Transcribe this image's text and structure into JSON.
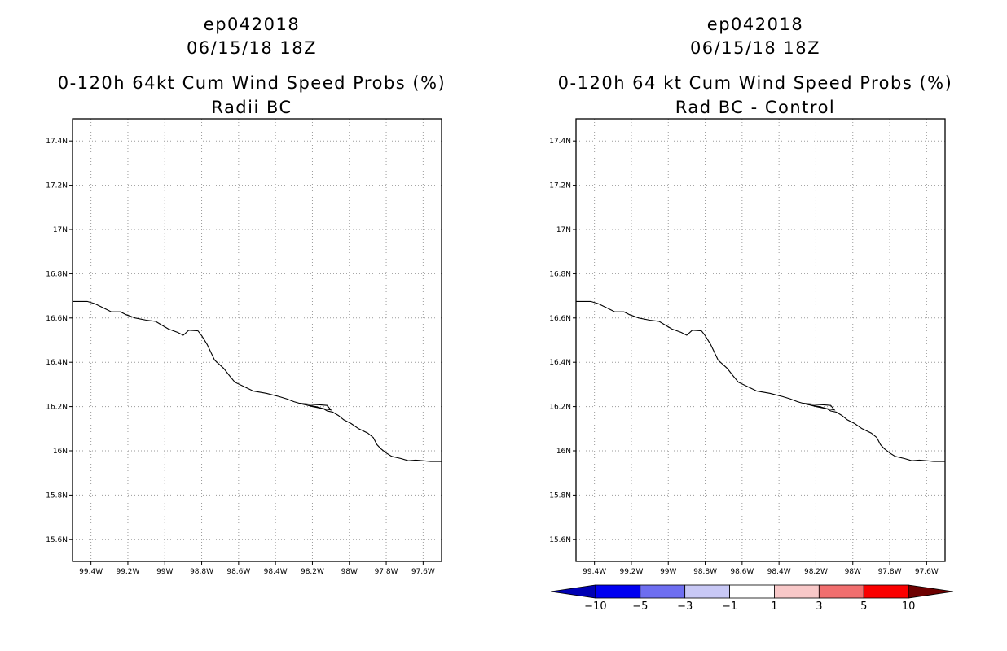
{
  "panels": [
    {
      "storm_id": "ep042018",
      "datetime": "06/15/18 18Z",
      "product": "0-120h 64kt Cum Wind Speed Probs (%)",
      "subtitle": "Radii BC"
    },
    {
      "storm_id": "ep042018",
      "datetime": "06/15/18 18Z",
      "product": "0-120h 64 kt Cum Wind Speed Probs (%)",
      "subtitle": "Rad BC - Control"
    }
  ],
  "map": {
    "lon_range": [
      -99.5,
      -97.5
    ],
    "lat_range": [
      15.5,
      17.5
    ],
    "lon_ticks": [
      {
        "value": -99.4,
        "label": "99.4W"
      },
      {
        "value": -99.2,
        "label": "99.2W"
      },
      {
        "value": -99.0,
        "label": "99W"
      },
      {
        "value": -98.8,
        "label": "98.8W"
      },
      {
        "value": -98.6,
        "label": "98.6W"
      },
      {
        "value": -98.4,
        "label": "98.4W"
      },
      {
        "value": -98.2,
        "label": "98.2W"
      },
      {
        "value": -98.0,
        "label": "98W"
      },
      {
        "value": -97.8,
        "label": "97.8W"
      },
      {
        "value": -97.6,
        "label": "97.6W"
      }
    ],
    "lat_ticks": [
      {
        "value": 15.6,
        "label": "15.6N"
      },
      {
        "value": 15.8,
        "label": "15.8N"
      },
      {
        "value": 16.0,
        "label": "16N"
      },
      {
        "value": 16.2,
        "label": "16.2N"
      },
      {
        "value": 16.4,
        "label": "16.4N"
      },
      {
        "value": 16.6,
        "label": "16.6N"
      },
      {
        "value": 16.8,
        "label": "16.8N"
      },
      {
        "value": 17.0,
        "label": "17N"
      },
      {
        "value": 17.2,
        "label": "17.2N"
      },
      {
        "value": 17.4,
        "label": "17.4N"
      }
    ],
    "coastline": [
      [
        -99.5,
        16.675
      ],
      [
        -99.42,
        16.675
      ],
      [
        -99.38,
        16.665
      ],
      [
        -99.33,
        16.645
      ],
      [
        -99.29,
        16.628
      ],
      [
        -99.24,
        16.628
      ],
      [
        -99.21,
        16.615
      ],
      [
        -99.16,
        16.6
      ],
      [
        -99.1,
        16.59
      ],
      [
        -99.05,
        16.585
      ],
      [
        -99.02,
        16.57
      ],
      [
        -98.98,
        16.55
      ],
      [
        -98.93,
        16.535
      ],
      [
        -98.9,
        16.522
      ],
      [
        -98.87,
        16.545
      ],
      [
        -98.82,
        16.542
      ],
      [
        -98.8,
        16.52
      ],
      [
        -98.77,
        16.48
      ],
      [
        -98.73,
        16.41
      ],
      [
        -98.68,
        16.372
      ],
      [
        -98.65,
        16.34
      ],
      [
        -98.62,
        16.31
      ],
      [
        -98.57,
        16.29
      ],
      [
        -98.52,
        16.27
      ],
      [
        -98.45,
        16.26
      ],
      [
        -98.38,
        16.245
      ],
      [
        -98.34,
        16.235
      ],
      [
        -98.3,
        16.222
      ],
      [
        -98.25,
        16.21
      ],
      [
        -98.18,
        16.2
      ],
      [
        -98.14,
        16.19
      ],
      [
        -98.12,
        16.18
      ],
      [
        -98.09,
        16.175
      ],
      [
        -98.06,
        16.16
      ],
      [
        -98.03,
        16.14
      ],
      [
        -97.99,
        16.123
      ],
      [
        -97.95,
        16.1
      ],
      [
        -97.9,
        16.08
      ],
      [
        -97.87,
        16.06
      ],
      [
        -97.85,
        16.028
      ],
      [
        -97.83,
        16.01
      ],
      [
        -97.8,
        15.99
      ],
      [
        -97.77,
        15.975
      ],
      [
        -97.72,
        15.965
      ],
      [
        -97.68,
        15.955
      ],
      [
        -97.64,
        15.958
      ],
      [
        -97.6,
        15.955
      ],
      [
        -97.56,
        15.952
      ],
      [
        -97.5,
        15.952
      ]
    ],
    "island": [
      [
        -98.27,
        16.215
      ],
      [
        -98.2,
        16.21
      ],
      [
        -98.16,
        16.208
      ],
      [
        -98.12,
        16.205
      ],
      [
        -98.1,
        16.185
      ],
      [
        -98.15,
        16.192
      ],
      [
        -98.2,
        16.2
      ],
      [
        -98.27,
        16.215
      ]
    ]
  },
  "colorbar": {
    "segments": [
      {
        "color": "#0000b4",
        "label": "-10",
        "tri": "left"
      },
      {
        "color": "#0000f0",
        "label": "-5"
      },
      {
        "color": "#6e6ef0",
        "label": "-3"
      },
      {
        "color": "#c8c8f5",
        "label": "-1"
      },
      {
        "color": "#ffffff",
        "label": "1"
      },
      {
        "color": "#f8c8c8",
        "label": "3"
      },
      {
        "color": "#f06e6e",
        "label": "5"
      },
      {
        "color": "#fa0000",
        "label": "10"
      },
      {
        "color": "#6e0000",
        "label": "",
        "tri": "right"
      }
    ]
  }
}
